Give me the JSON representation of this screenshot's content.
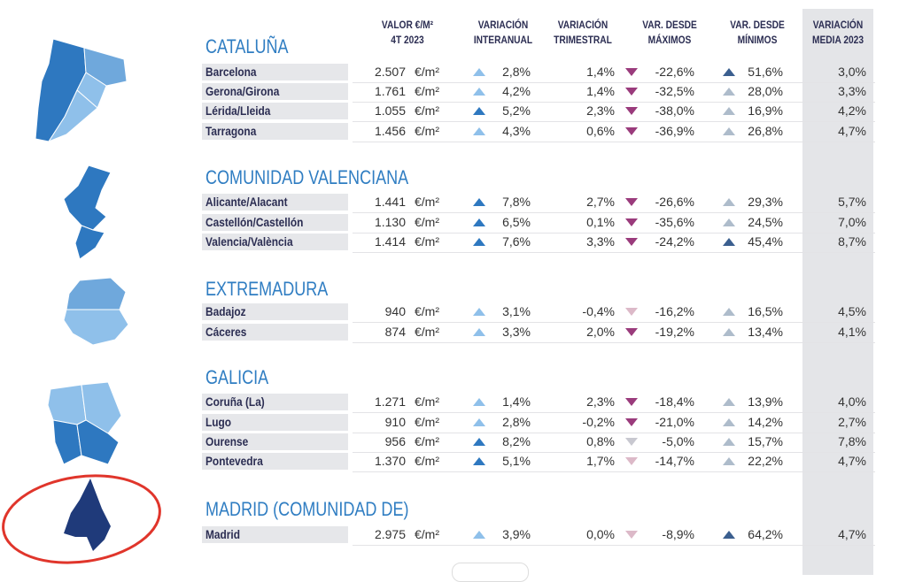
{
  "headers": {
    "valor": [
      "VALOR €/M²",
      "4T 2023"
    ],
    "interanual": [
      "VARIACIÓN",
      "INTERANUAL"
    ],
    "trimestral": [
      "VARIACIÓN",
      "TRIMESTRAL"
    ],
    "maximos": [
      "VAR. DESDE",
      "MÁXIMOS"
    ],
    "minimos": [
      "VAR. DESDE",
      "MÍNIMOS"
    ],
    "media": [
      "VARIACIÓN",
      "MEDIA 2023"
    ]
  },
  "unit": "€/m²",
  "colors": {
    "up_dark": "#2e78c0",
    "up_light": "#8fc0ea",
    "up_grey": "#aebccb",
    "up_navy": "#3b5f8f",
    "down_magenta": "#9a3b7c",
    "down_pink": "#dcb9c8",
    "down_grey": "#c8c8d0",
    "region_title": "#2f7dc2",
    "highlight_circle": "#e0352b"
  },
  "regions": [
    {
      "title": "CATALUÑA",
      "rows": [
        {
          "name": "Barcelona",
          "valor": "2.507",
          "ia": "2,8%",
          "ia_t": "up_light",
          "tri": "1,4%",
          "max": "-22,6%",
          "max_t": "down_magenta",
          "min": "51,6%",
          "min_t": "up_navy",
          "media": "3,0%"
        },
        {
          "name": "Gerona/Girona",
          "valor": "1.761",
          "ia": "4,2%",
          "ia_t": "up_light",
          "tri": "1,4%",
          "max": "-32,5%",
          "max_t": "down_magenta",
          "min": "28,0%",
          "min_t": "up_grey",
          "media": "3,3%"
        },
        {
          "name": "Lérida/Lleida",
          "valor": "1.055",
          "ia": "5,2%",
          "ia_t": "up_dark",
          "tri": "2,3%",
          "max": "-38,0%",
          "max_t": "down_magenta",
          "min": "16,9%",
          "min_t": "up_grey",
          "media": "4,2%"
        },
        {
          "name": "Tarragona",
          "valor": "1.456",
          "ia": "4,3%",
          "ia_t": "up_light",
          "tri": "0,6%",
          "max": "-36,9%",
          "max_t": "down_magenta",
          "min": "26,8%",
          "min_t": "up_grey",
          "media": "4,7%"
        }
      ]
    },
    {
      "title": "COMUNIDAD VALENCIANA",
      "rows": [
        {
          "name": "Alicante/Alacant",
          "valor": "1.441",
          "ia": "7,8%",
          "ia_t": "up_dark",
          "tri": "2,7%",
          "max": "-26,6%",
          "max_t": "down_magenta",
          "min": "29,3%",
          "min_t": "up_grey",
          "media": "5,7%"
        },
        {
          "name": "Castellón/Castellón",
          "valor": "1.130",
          "ia": "6,5%",
          "ia_t": "up_dark",
          "tri": "0,1%",
          "max": "-35,6%",
          "max_t": "down_magenta",
          "min": "24,5%",
          "min_t": "up_grey",
          "media": "7,0%"
        },
        {
          "name": "Valencia/València",
          "valor": "1.414",
          "ia": "7,6%",
          "ia_t": "up_dark",
          "tri": "3,3%",
          "max": "-24,2%",
          "max_t": "down_magenta",
          "min": "45,4%",
          "min_t": "up_navy",
          "media": "8,7%"
        }
      ]
    },
    {
      "title": "EXTREMADURA",
      "rows": [
        {
          "name": "Badajoz",
          "valor": "940",
          "ia": "3,1%",
          "ia_t": "up_light",
          "tri": "-0,4%",
          "max": "-16,2%",
          "max_t": "down_pink",
          "min": "16,5%",
          "min_t": "up_grey",
          "media": "4,5%"
        },
        {
          "name": "Cáceres",
          "valor": "874",
          "ia": "3,3%",
          "ia_t": "up_light",
          "tri": "2,0%",
          "max": "-19,2%",
          "max_t": "down_magenta",
          "min": "13,4%",
          "min_t": "up_grey",
          "media": "4,1%"
        }
      ]
    },
    {
      "title": "GALICIA",
      "rows": [
        {
          "name": "Coruña (La)",
          "valor": "1.271",
          "ia": "1,4%",
          "ia_t": "up_light",
          "tri": "2,3%",
          "max": "-18,4%",
          "max_t": "down_magenta",
          "min": "13,9%",
          "min_t": "up_grey",
          "media": "4,0%"
        },
        {
          "name": "Lugo",
          "valor": "910",
          "ia": "2,8%",
          "ia_t": "up_light",
          "tri": "-0,2%",
          "max": "-21,0%",
          "max_t": "down_magenta",
          "min": "14,2%",
          "min_t": "up_grey",
          "media": "2,7%"
        },
        {
          "name": "Ourense",
          "valor": "956",
          "ia": "8,2%",
          "ia_t": "up_dark",
          "tri": "0,8%",
          "max": "-5,0%",
          "max_t": "down_grey",
          "min": "15,7%",
          "min_t": "up_grey",
          "media": "7,8%"
        },
        {
          "name": "Pontevedra",
          "valor": "1.370",
          "ia": "5,1%",
          "ia_t": "up_dark",
          "tri": "1,7%",
          "max": "-14,7%",
          "max_t": "down_pink",
          "min": "22,2%",
          "min_t": "up_grey",
          "media": "4,7%"
        }
      ]
    },
    {
      "title": "MADRID (COMUNIDAD DE)",
      "rows": [
        {
          "name": "Madrid",
          "valor": "2.975",
          "ia": "3,9%",
          "ia_t": "up_light",
          "tri": "0,0%",
          "max": "-8,9%",
          "max_t": "down_pink",
          "min": "64,2%",
          "min_t": "up_navy",
          "media": "4,7%"
        }
      ]
    }
  ]
}
